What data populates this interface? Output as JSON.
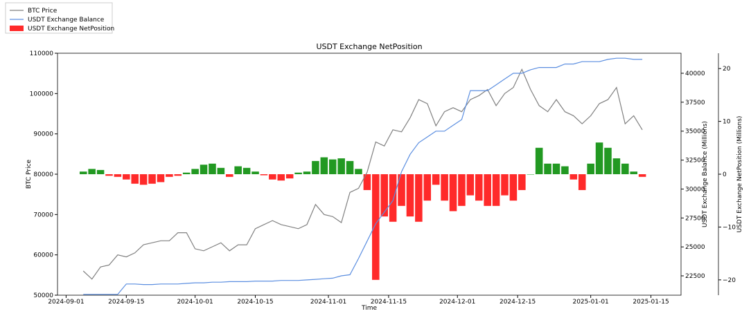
{
  "chart_data": {
    "type": "combo",
    "title": "USDT Exchange NetPosition",
    "x_label": "Time",
    "y_label": "BTC Price",
    "y2_label": "USDT Exchange Balance (Millions)",
    "y3_label": "USDT Exchange NetPosition (Millions)",
    "x": [
      "2024-09-05",
      "2024-09-07",
      "2024-09-09",
      "2024-09-11",
      "2024-09-13",
      "2024-09-15",
      "2024-09-17",
      "2024-09-19",
      "2024-09-21",
      "2024-09-23",
      "2024-09-25",
      "2024-09-27",
      "2024-09-29",
      "2024-10-01",
      "2024-10-03",
      "2024-10-05",
      "2024-10-07",
      "2024-10-09",
      "2024-10-11",
      "2024-10-13",
      "2024-10-15",
      "2024-10-17",
      "2024-10-19",
      "2024-10-21",
      "2024-10-23",
      "2024-10-25",
      "2024-10-27",
      "2024-10-29",
      "2024-10-31",
      "2024-11-02",
      "2024-11-04",
      "2024-11-06",
      "2024-11-08",
      "2024-11-10",
      "2024-11-12",
      "2024-11-14",
      "2024-11-16",
      "2024-11-18",
      "2024-11-20",
      "2024-11-22",
      "2024-11-24",
      "2024-11-26",
      "2024-11-28",
      "2024-11-30",
      "2024-12-02",
      "2024-12-04",
      "2024-12-06",
      "2024-12-08",
      "2024-12-10",
      "2024-12-12",
      "2024-12-14",
      "2024-12-16",
      "2024-12-18",
      "2024-12-20",
      "2024-12-22",
      "2024-12-24",
      "2024-12-26",
      "2024-12-28",
      "2024-12-30",
      "2025-01-01",
      "2025-01-03",
      "2025-01-05",
      "2025-01-07",
      "2025-01-09",
      "2025-01-11",
      "2025-01-13"
    ],
    "xlim": [
      "2024-08-30",
      "2025-01-22"
    ],
    "xticks": [
      "2024-09-01",
      "2024-09-15",
      "2024-10-01",
      "2024-10-15",
      "2024-11-01",
      "2024-11-15",
      "2024-12-01",
      "2024-12-15",
      "2025-01-01",
      "2025-01-15"
    ],
    "ylim": [
      50000,
      110000
    ],
    "yticks": [
      50000,
      60000,
      70000,
      80000,
      90000,
      100000,
      110000
    ],
    "y2lim": [
      20830,
      41730
    ],
    "y2ticks": [
      22500,
      25000,
      27500,
      30000,
      32500,
      35000,
      37500,
      40000
    ],
    "y3lim": [
      -22.9,
      22.9
    ],
    "y3ticks": [
      {
        "value": -20,
        "label": "−20"
      },
      {
        "value": -10,
        "label": "−10"
      },
      0,
      10,
      20
    ],
    "series": [
      {
        "name": "BTC Price",
        "color": "#808080",
        "values": [
          56000,
          54000,
          57000,
          57500,
          60000,
          59500,
          60500,
          62500,
          63000,
          63500,
          63500,
          65500,
          65500,
          61500,
          61000,
          62000,
          63000,
          61000,
          62500,
          62500,
          66500,
          67500,
          68500,
          67500,
          67000,
          66500,
          67500,
          72500,
          70000,
          69500,
          68000,
          75500,
          76500,
          80500,
          88000,
          87000,
          91000,
          90500,
          94000,
          98500,
          97500,
          92000,
          95500,
          96500,
          95500,
          98500,
          99500,
          101000,
          97000,
          100000,
          101500,
          106000,
          101000,
          97000,
          95500,
          98500,
          95500,
          94500,
          92500,
          94500,
          97500,
          98500,
          101500,
          92500,
          94500,
          91000
        ]
      },
      {
        "name": "USDT Exchange Balance",
        "color": "#5b8ee0",
        "axis": "y2",
        "values": [
          20900,
          20900,
          20900,
          20900,
          20900,
          21800,
          21800,
          21750,
          21750,
          21800,
          21800,
          21800,
          21850,
          21900,
          21900,
          21950,
          21950,
          22000,
          22000,
          22000,
          22050,
          22050,
          22050,
          22100,
          22100,
          22100,
          22150,
          22200,
          22250,
          22300,
          22500,
          22600,
          24000,
          25500,
          27000,
          28000,
          29000,
          31500,
          33000,
          34000,
          34500,
          35000,
          35000,
          35500,
          36000,
          38500,
          38500,
          38500,
          39000,
          39500,
          40000,
          40000,
          40300,
          40500,
          40500,
          40500,
          40800,
          40800,
          41000,
          41000,
          41000,
          41200,
          41300,
          41300,
          41200,
          41200
        ]
      },
      {
        "name": "USDT Exchange NetPosition",
        "color": "#ff2a2a",
        "positive_color": "#229922",
        "axis": "y3",
        "values": [
          0.5,
          1,
          0.8,
          -0.3,
          -0.5,
          -1,
          -1.8,
          -2,
          -1.8,
          -1.5,
          -0.5,
          -0.3,
          0.3,
          1,
          1.8,
          2,
          1.2,
          -0.5,
          1.5,
          1.2,
          0.5,
          -0.2,
          -1,
          -1.2,
          -0.8,
          0.3,
          0.5,
          2.5,
          3.2,
          2.8,
          3,
          2.5,
          1,
          -3,
          -20,
          -8,
          -9,
          -6,
          -8,
          -9,
          -5,
          -2,
          -5,
          -7,
          -6,
          -4,
          -5,
          -6,
          -6,
          -4,
          -5,
          -3,
          0,
          5,
          2,
          2,
          1.5,
          -1,
          -3,
          2,
          6,
          5,
          3,
          2,
          0.5,
          -0.5
        ]
      }
    ]
  }
}
